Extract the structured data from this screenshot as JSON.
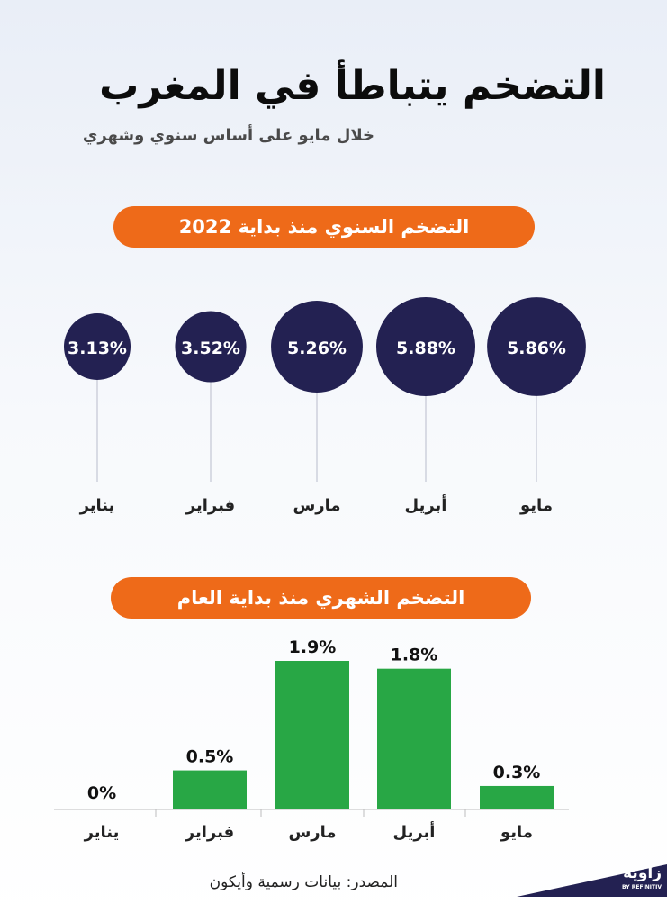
{
  "header": {
    "title": "التضخم يتباطأ في المغرب",
    "subtitle": "خلال مايو على أساس سنوي وشهري"
  },
  "sections": {
    "annual_title": "التضخم السنوي منذ بداية 2022",
    "monthly_title": "التضخم الشهري منذ بداية العام"
  },
  "footer": {
    "source": "المصدر: بيانات رسمية وأيكون",
    "logo_text": "زاوية",
    "logo_sub": "BY REFINITIV"
  },
  "colors": {
    "navy": "#232152",
    "orange": "#ee6a19",
    "green": "#28a745"
  },
  "chart_data": [
    {
      "type": "bubble",
      "title": "التضخم السنوي منذ بداية 2022",
      "categories": [
        "يناير",
        "فبراير",
        "مارس",
        "أبريل",
        "مايو"
      ],
      "values": [
        3.13,
        3.52,
        5.26,
        5.88,
        5.86
      ],
      "labels": [
        "3.13%",
        "3.52%",
        "5.26%",
        "5.88%",
        "5.86%"
      ],
      "unit": "%"
    },
    {
      "type": "bar",
      "title": "التضخم الشهري منذ بداية العام",
      "categories": [
        "يناير",
        "فبراير",
        "مارس",
        "أبريل",
        "مايو"
      ],
      "values": [
        0,
        0.5,
        1.9,
        1.8,
        0.3
      ],
      "labels": [
        "0%",
        "0.5%",
        "1.9%",
        "1.8%",
        "0.3%"
      ],
      "unit": "%",
      "ylim": [
        0,
        1.9
      ]
    }
  ]
}
